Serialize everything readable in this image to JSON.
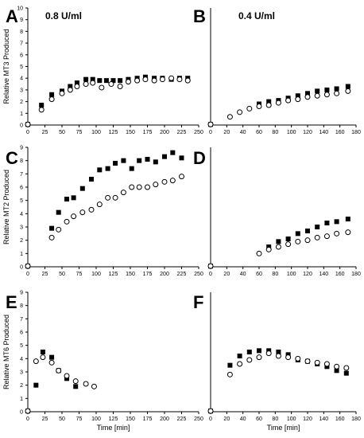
{
  "chart_data": [
    {
      "panel": "A",
      "condition_label": "0.8 U/ml",
      "type": "scatter",
      "ylabel": "Relative MT3 Produced",
      "xlabel": "",
      "xlim": [
        0,
        250
      ],
      "ylim": [
        0,
        10
      ],
      "xticks": [
        0,
        25,
        50,
        75,
        100,
        125,
        150,
        175,
        200,
        225,
        250
      ],
      "yticks": [
        0,
        1,
        2,
        3,
        4,
        5,
        6,
        7,
        8,
        9,
        10
      ],
      "series": [
        {
          "marker": "filled-square",
          "points": [
            [
              0,
              0.05
            ],
            [
              20,
              1.7
            ],
            [
              35,
              2.6
            ],
            [
              50,
              2.9
            ],
            [
              62,
              3.3
            ],
            [
              72,
              3.6
            ],
            [
              85,
              3.9
            ],
            [
              95,
              3.9
            ],
            [
              105,
              3.8
            ],
            [
              115,
              3.8
            ],
            [
              125,
              3.8
            ],
            [
              135,
              3.8
            ],
            [
              147,
              3.9
            ],
            [
              160,
              4.0
            ],
            [
              172,
              4.1
            ],
            [
              185,
              4.0
            ],
            [
              197,
              4.0
            ],
            [
              210,
              3.9
            ],
            [
              222,
              4.0
            ],
            [
              234,
              4.0
            ]
          ]
        },
        {
          "marker": "open-circle",
          "points": [
            [
              0,
              0.05
            ],
            [
              20,
              1.3
            ],
            [
              35,
              2.2
            ],
            [
              50,
              2.7
            ],
            [
              62,
              3.0
            ],
            [
              72,
              3.3
            ],
            [
              85,
              3.5
            ],
            [
              95,
              3.6
            ],
            [
              108,
              3.2
            ],
            [
              122,
              3.5
            ],
            [
              135,
              3.3
            ],
            [
              147,
              3.7
            ],
            [
              160,
              3.8
            ],
            [
              172,
              3.9
            ],
            [
              185,
              3.8
            ],
            [
              197,
              3.9
            ],
            [
              210,
              4.0
            ],
            [
              222,
              3.9
            ],
            [
              234,
              3.8
            ]
          ]
        }
      ]
    },
    {
      "panel": "B",
      "condition_label": "0.4 U/ml",
      "type": "scatter",
      "ylabel": "",
      "xlabel": "",
      "xlim": [
        0,
        180
      ],
      "ylim": [
        0,
        10
      ],
      "xticks": [
        0,
        20,
        40,
        60,
        80,
        100,
        120,
        140,
        160,
        180
      ],
      "yticks": [],
      "series": [
        {
          "marker": "filled-square",
          "points": [
            [
              0,
              0.05
            ],
            [
              60,
              1.8
            ],
            [
              72,
              2.0
            ],
            [
              84,
              2.1
            ],
            [
              96,
              2.3
            ],
            [
              108,
              2.5
            ],
            [
              120,
              2.7
            ],
            [
              132,
              2.9
            ],
            [
              144,
              3.0
            ],
            [
              156,
              3.1
            ],
            [
              170,
              3.3
            ]
          ]
        },
        {
          "marker": "open-circle",
          "points": [
            [
              0,
              0.05
            ],
            [
              24,
              0.7
            ],
            [
              36,
              1.1
            ],
            [
              48,
              1.4
            ],
            [
              60,
              1.6
            ],
            [
              72,
              1.7
            ],
            [
              84,
              1.9
            ],
            [
              96,
              2.1
            ],
            [
              108,
              2.2
            ],
            [
              120,
              2.4
            ],
            [
              132,
              2.5
            ],
            [
              144,
              2.6
            ],
            [
              156,
              2.7
            ],
            [
              170,
              2.9
            ]
          ]
        }
      ]
    },
    {
      "panel": "C",
      "condition_label": "",
      "type": "scatter",
      "ylabel": "Relative MT2 Produced",
      "xlabel": "",
      "xlim": [
        0,
        250
      ],
      "ylim": [
        0,
        9
      ],
      "xticks": [
        0,
        25,
        50,
        75,
        100,
        125,
        150,
        175,
        200,
        225,
        250
      ],
      "yticks": [
        0,
        1,
        2,
        3,
        4,
        5,
        6,
        7,
        8,
        9
      ],
      "series": [
        {
          "marker": "filled-square",
          "points": [
            [
              0,
              0.05
            ],
            [
              35,
              2.9
            ],
            [
              45,
              4.1
            ],
            [
              57,
              5.1
            ],
            [
              67,
              5.2
            ],
            [
              80,
              5.9
            ],
            [
              93,
              6.6
            ],
            [
              105,
              7.3
            ],
            [
              117,
              7.4
            ],
            [
              128,
              7.8
            ],
            [
              140,
              8.0
            ],
            [
              152,
              7.4
            ],
            [
              163,
              8.0
            ],
            [
              175,
              8.1
            ],
            [
              187,
              7.9
            ],
            [
              200,
              8.3
            ],
            [
              212,
              8.6
            ],
            [
              225,
              8.2
            ]
          ]
        },
        {
          "marker": "open-circle",
          "points": [
            [
              0,
              0.05
            ],
            [
              35,
              2.2
            ],
            [
              45,
              2.8
            ],
            [
              57,
              3.4
            ],
            [
              67,
              3.8
            ],
            [
              80,
              4.1
            ],
            [
              93,
              4.3
            ],
            [
              105,
              4.7
            ],
            [
              117,
              5.2
            ],
            [
              128,
              5.2
            ],
            [
              140,
              5.6
            ],
            [
              152,
              6.0
            ],
            [
              163,
              6.0
            ],
            [
              175,
              6.0
            ],
            [
              187,
              6.2
            ],
            [
              200,
              6.4
            ],
            [
              212,
              6.5
            ],
            [
              225,
              6.8
            ]
          ]
        }
      ]
    },
    {
      "panel": "D",
      "condition_label": "",
      "type": "scatter",
      "ylabel": "",
      "xlabel": "",
      "xlim": [
        0,
        180
      ],
      "ylim": [
        0,
        9
      ],
      "xticks": [
        0,
        20,
        40,
        60,
        80,
        100,
        120,
        140,
        160,
        180
      ],
      "yticks": [],
      "series": [
        {
          "marker": "filled-square",
          "points": [
            [
              0,
              0.05
            ],
            [
              72,
              1.5
            ],
            [
              84,
              1.9
            ],
            [
              96,
              2.1
            ],
            [
              108,
              2.5
            ],
            [
              120,
              2.7
            ],
            [
              132,
              3.0
            ],
            [
              144,
              3.3
            ],
            [
              156,
              3.4
            ],
            [
              170,
              3.6
            ]
          ]
        },
        {
          "marker": "open-circle",
          "points": [
            [
              0,
              0.05
            ],
            [
              60,
              1.0
            ],
            [
              72,
              1.3
            ],
            [
              84,
              1.5
            ],
            [
              96,
              1.7
            ],
            [
              108,
              1.9
            ],
            [
              120,
              2.0
            ],
            [
              132,
              2.2
            ],
            [
              144,
              2.3
            ],
            [
              156,
              2.5
            ],
            [
              170,
              2.6
            ]
          ]
        }
      ]
    },
    {
      "panel": "E",
      "condition_label": "",
      "type": "scatter",
      "ylabel": "Relative MT6 Produced",
      "xlabel": "Time [min]",
      "xlim": [
        0,
        250
      ],
      "ylim": [
        0,
        9
      ],
      "xticks": [
        0,
        25,
        50,
        75,
        100,
        125,
        150,
        175,
        200,
        225,
        250
      ],
      "yticks": [
        0,
        1,
        2,
        3,
        4,
        5,
        6,
        7,
        8,
        9
      ],
      "series": [
        {
          "marker": "filled-square",
          "points": [
            [
              0,
              0.05
            ],
            [
              12,
              2.0
            ],
            [
              22,
              4.5
            ],
            [
              35,
              4.1
            ],
            [
              45,
              3.1
            ],
            [
              57,
              2.5
            ],
            [
              70,
              1.9
            ]
          ]
        },
        {
          "marker": "open-circle",
          "points": [
            [
              0,
              0.05
            ],
            [
              12,
              3.8
            ],
            [
              22,
              4.1
            ],
            [
              35,
              3.7
            ],
            [
              45,
              3.1
            ],
            [
              57,
              2.7
            ],
            [
              70,
              2.3
            ],
            [
              85,
              2.1
            ],
            [
              97,
              1.9
            ]
          ]
        }
      ]
    },
    {
      "panel": "F",
      "condition_label": "",
      "type": "scatter",
      "ylabel": "",
      "xlabel": "Time [min]",
      "xlim": [
        0,
        180
      ],
      "ylim": [
        0,
        9
      ],
      "xticks": [
        0,
        20,
        40,
        60,
        80,
        100,
        120,
        140,
        160,
        180
      ],
      "yticks": [],
      "series": [
        {
          "marker": "filled-square",
          "points": [
            [
              0,
              0.05
            ],
            [
              24,
              3.5
            ],
            [
              36,
              4.2
            ],
            [
              48,
              4.5
            ],
            [
              60,
              4.6
            ],
            [
              72,
              4.6
            ],
            [
              84,
              4.5
            ],
            [
              96,
              4.3
            ],
            [
              108,
              3.9
            ],
            [
              120,
              3.8
            ],
            [
              132,
              3.6
            ],
            [
              144,
              3.4
            ],
            [
              156,
              3.1
            ],
            [
              168,
              2.9
            ]
          ]
        },
        {
          "marker": "open-circle",
          "points": [
            [
              0,
              0.05
            ],
            [
              24,
              2.8
            ],
            [
              36,
              3.6
            ],
            [
              48,
              3.9
            ],
            [
              60,
              4.1
            ],
            [
              72,
              4.4
            ],
            [
              84,
              4.2
            ],
            [
              96,
              4.1
            ],
            [
              108,
              4.0
            ],
            [
              120,
              3.8
            ],
            [
              132,
              3.7
            ],
            [
              144,
              3.6
            ],
            [
              156,
              3.4
            ],
            [
              168,
              3.3
            ]
          ]
        }
      ]
    }
  ]
}
